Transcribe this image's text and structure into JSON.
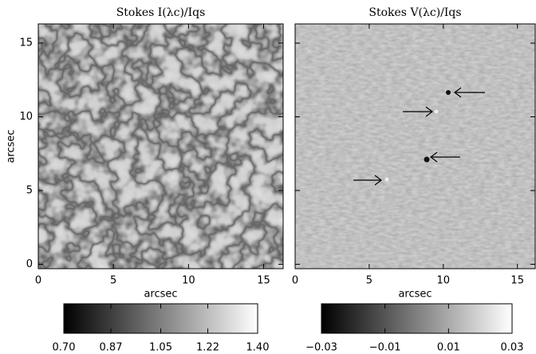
{
  "chart_data": [
    {
      "type": "image",
      "title": "Stokes I(λc)/Iqs",
      "xlabel": "arcsec",
      "ylabel": "arcsec",
      "xlim": [
        0,
        16.3
      ],
      "ylim": [
        -0.3,
        16.3
      ],
      "xticks": [
        0,
        5,
        10,
        15
      ],
      "yticks": [
        0,
        5,
        10,
        15
      ],
      "ytick_labels": true,
      "colorbar": {
        "clim": [
          0.7,
          1.4
        ],
        "ticks": [
          {
            "value": 0.7,
            "label": "0.70"
          },
          0.87,
          1.05,
          1.22,
          {
            "value": 1.4,
            "label": "1.40"
          }
        ]
      }
    },
    {
      "type": "image",
      "title": "Stokes V(λc)/Iqs",
      "xlabel": "arcsec",
      "xlim": [
        0,
        16.2
      ],
      "ylim": [
        -0.3,
        16.3
      ],
      "xticks": [
        0,
        5,
        10,
        15
      ],
      "yticks": [
        0,
        5,
        10,
        15
      ],
      "ytick_labels": false,
      "colorbar": {
        "clim": [
          -0.03,
          0.03
        ],
        "ticks": [
          {
            "value": -0.03,
            "label": "−0.03"
          },
          {
            "value": -0.01,
            "label": "−0.01"
          },
          0.01,
          0.03
        ]
      }
    }
  ]
}
